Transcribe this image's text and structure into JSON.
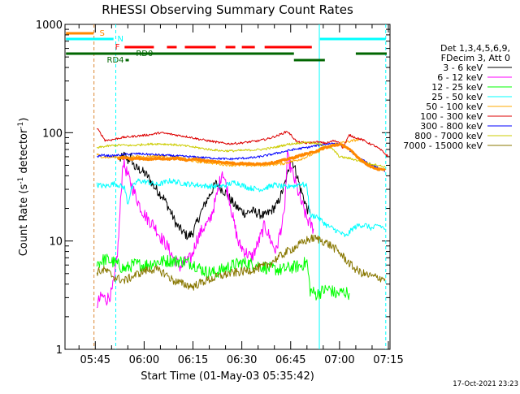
{
  "chart_data": {
    "type": "line",
    "title": "RHESSI Observing Summary Count Rates",
    "xlabel": "Start Time (01-May-03 05:35:42)",
    "ylabel": "Count Rate (s⁻¹ detector⁻¹)",
    "ylabel_parts": [
      "Count Rate (s",
      "-1",
      " detector",
      "-1",
      ")"
    ],
    "y_scale": "log",
    "ylim": [
      1,
      1000
    ],
    "xlim_minutes": [
      35.7,
      135.5
    ],
    "x_ticks": [
      {
        "label": "05:45",
        "min": 45
      },
      {
        "label": "06:00",
        "min": 60
      },
      {
        "label": "06:15",
        "min": 75
      },
      {
        "label": "06:30",
        "min": 90
      },
      {
        "label": "06:45",
        "min": 105
      },
      {
        "label": "07:00",
        "min": 120
      },
      {
        "label": "07:15",
        "min": 135
      }
    ],
    "y_ticks": [
      {
        "label": "1",
        "value": 1
      },
      {
        "label": "10",
        "value": 10
      },
      {
        "label": "100",
        "value": 100
      },
      {
        "label": "1000",
        "value": 1000
      }
    ],
    "legend_header": [
      "Det 1,3,4,5,6,9,",
      "FDecim 3, Att 0"
    ],
    "legend_position": "right",
    "series": [
      {
        "name": "3 - 6 keV",
        "color": "#000000",
        "x": [
          52.5,
          54,
          55,
          56,
          57,
          59,
          61,
          63,
          66,
          68,
          70,
          72,
          73.5,
          75,
          77,
          79,
          82,
          85,
          88,
          91,
          93,
          95,
          97,
          99,
          101,
          103,
          104,
          105,
          106,
          107,
          108,
          109,
          110,
          111
        ],
        "y": [
          56,
          62,
          55,
          60,
          48,
          45,
          40,
          32,
          25,
          19,
          14,
          12,
          11,
          12,
          17,
          23,
          34,
          28,
          21,
          18,
          19,
          18,
          17,
          19,
          22,
          32,
          40,
          58,
          50,
          40,
          30,
          25,
          20,
          18
        ]
      },
      {
        "name": "6 - 12 keV",
        "color": "#ff00ff",
        "x": [
          45.5,
          47,
          48.5,
          50,
          51,
          52,
          53.5,
          55,
          57,
          59,
          61,
          63,
          65,
          67,
          69,
          71,
          73,
          74.5,
          76,
          78,
          80,
          82,
          84,
          86,
          87.5,
          89,
          91,
          93,
          95,
          97,
          99,
          100.5,
          102,
          103,
          104,
          106,
          108,
          110,
          112
        ],
        "y": [
          2.6,
          3.1,
          2.9,
          3.3,
          4.6,
          9,
          55,
          40,
          28,
          20,
          16,
          14,
          11,
          9,
          7,
          5.8,
          6.5,
          7,
          10,
          13,
          15,
          24,
          45,
          26,
          15,
          9.5,
          8,
          7,
          9.5,
          14,
          10,
          8,
          13,
          17,
          60,
          38,
          24,
          16,
          13
        ]
      },
      {
        "name": "12 - 25 keV",
        "color": "#00ff00",
        "x": [
          45.5,
          48,
          51,
          54,
          57,
          60,
          64,
          68,
          72,
          75,
          77,
          79,
          82,
          86,
          90,
          94,
          98,
          102,
          105,
          108,
          110,
          111,
          113,
          115,
          117,
          119,
          121,
          123
        ],
        "y": [
          6.2,
          6.8,
          6.3,
          5.5,
          6.1,
          6,
          6.4,
          6.6,
          6.5,
          6.2,
          5.6,
          5.2,
          5.1,
          5.8,
          6.3,
          6.1,
          5.6,
          5.4,
          5.7,
          5.9,
          6.4,
          3.5,
          3.2,
          3.5,
          3.6,
          3.2,
          3.4,
          3.3
        ]
      },
      {
        "name": "25 - 50 keV",
        "color": "#00ffff",
        "x": [
          45.5,
          48,
          51,
          54,
          55,
          56,
          58,
          61,
          64,
          68,
          72,
          76,
          80,
          84,
          88,
          92,
          96,
          100,
          102,
          104,
          105,
          106,
          108,
          110,
          111,
          113,
          116,
          118,
          120,
          122,
          124,
          126,
          128,
          130,
          132,
          134
        ],
        "y": [
          33,
          32,
          34,
          31,
          22,
          30,
          36,
          35,
          33,
          36,
          34,
          33,
          32,
          32,
          35,
          31,
          30,
          33,
          32,
          31,
          33,
          32,
          34,
          32,
          17,
          17,
          14,
          13,
          12,
          11,
          13,
          14,
          14,
          13,
          14,
          13
        ]
      },
      {
        "name": "50 - 100 keV",
        "color": "#ffaa00",
        "x": [
          45.5,
          47,
          49,
          51,
          54,
          57,
          60,
          64,
          68,
          72,
          76,
          80,
          84,
          88,
          92,
          96,
          100,
          103,
          106,
          108,
          110,
          112,
          114,
          116,
          118,
          120,
          122,
          124,
          126
        ],
        "y": [
          63,
          60,
          59,
          60,
          58,
          60,
          60,
          61,
          60,
          58,
          54,
          53,
          51,
          50,
          50,
          50,
          51,
          52,
          55,
          57,
          60,
          64,
          68,
          72,
          78,
          80,
          82,
          84,
          87
        ]
      },
      {
        "name": "100 - 300 keV",
        "color": "#dd0000",
        "x": [
          45.5,
          47,
          48,
          50,
          53,
          56,
          59,
          62,
          65,
          68,
          71,
          74,
          77,
          80,
          83,
          86,
          89,
          92,
          95,
          98,
          101,
          104,
          107,
          110,
          113,
          116,
          118,
          120,
          121,
          123,
          125,
          127,
          129,
          131,
          133,
          135
        ],
        "y": [
          110,
          95,
          85,
          86,
          90,
          92,
          94,
          96,
          100,
          97,
          94,
          91,
          87,
          84,
          81,
          79,
          80,
          82,
          84,
          88,
          94,
          103,
          82,
          80,
          82,
          80,
          84,
          82,
          72,
          95,
          90,
          86,
          80,
          75,
          68,
          60
        ]
      },
      {
        "name": "300 - 800 keV",
        "color": "#0000ff",
        "x": [
          45.5,
          47,
          50,
          54,
          58,
          62,
          66,
          70,
          74,
          78,
          82,
          86,
          90,
          94,
          98,
          102,
          106,
          110,
          114,
          118,
          120,
          122,
          124,
          126,
          128,
          130,
          132,
          134
        ],
        "y": [
          60,
          62,
          61,
          63,
          64,
          63,
          62,
          61,
          60,
          59,
          58,
          57,
          58,
          59,
          62,
          66,
          70,
          73,
          77,
          80,
          78,
          74,
          65,
          58,
          54,
          50,
          47,
          44
        ]
      },
      {
        "name": "800 - 7000 keV",
        "color": "#cccc00",
        "x": [
          45.5,
          47,
          50,
          53,
          56,
          60,
          64,
          68,
          72,
          76,
          80,
          84,
          88,
          92,
          96,
          100,
          104,
          107,
          110,
          113,
          116,
          118,
          120,
          123,
          126,
          129,
          132,
          134
        ],
        "y": [
          72,
          74,
          76,
          77,
          76,
          78,
          79,
          78,
          76,
          73,
          70,
          68,
          68,
          69,
          70,
          73,
          78,
          80,
          82,
          79,
          75,
          70,
          60,
          58,
          55,
          52,
          50,
          48
        ]
      },
      {
        "name": "7000 - 15000 keV",
        "color": "#887700",
        "x": [
          45.5,
          48,
          51,
          54,
          57,
          60,
          63,
          66,
          69,
          72,
          75,
          78,
          82,
          86,
          90,
          94,
          98,
          101,
          104,
          107,
          110,
          112,
          114,
          116,
          118,
          120,
          122,
          124,
          126,
          128,
          130,
          132,
          134
        ],
        "y": [
          5.2,
          5.4,
          4.6,
          4.3,
          4.8,
          5.3,
          5.5,
          5.1,
          4.3,
          4,
          3.8,
          4.2,
          4.6,
          5,
          5.2,
          5.5,
          6,
          7,
          8,
          9,
          10.2,
          10.6,
          10.3,
          9.6,
          8.8,
          7.8,
          6.7,
          5.8,
          5.2,
          4.9,
          4.7,
          4.6,
          4.5
        ]
      }
    ],
    "extra_lines": [
      {
        "name": "thick-orange",
        "color": "#ff8800",
        "x": [
          52,
          54,
          56,
          58,
          61,
          64,
          67,
          70,
          73,
          76,
          79,
          82,
          85,
          88,
          91,
          94,
          97,
          100,
          103,
          106,
          109,
          112,
          115,
          118,
          120,
          122,
          124,
          126,
          128,
          130,
          132,
          134
        ],
        "y": [
          58,
          59,
          57,
          58,
          57,
          58,
          57,
          58,
          56,
          57,
          55,
          54,
          53,
          52,
          52,
          51,
          52,
          53,
          56,
          59,
          63,
          66,
          72,
          76,
          78,
          74,
          66,
          58,
          52,
          48,
          46,
          45
        ]
      }
    ],
    "vlines": [
      {
        "label": "saa-start",
        "min": 44.6,
        "color": "#dd8833",
        "style": "dashed"
      },
      {
        "label": "night-end",
        "min": 51.3,
        "color": "#00ffff",
        "style": "dashed"
      },
      {
        "label": "saa-end",
        "min": 113.8,
        "color": "#00ffff",
        "style": "solid"
      },
      {
        "label": "night-start",
        "min": 134.2,
        "color": "#00ffff",
        "style": "dashed"
      }
    ],
    "flag_bars": [
      {
        "label": "S",
        "color": "#ff8800",
        "segments": [
          [
            36,
            44.5
          ]
        ]
      },
      {
        "label": "N",
        "color": "#00ffff",
        "segments": [
          [
            36,
            50.6
          ],
          [
            114,
            134.2
          ]
        ]
      },
      {
        "label": "F",
        "color": "#ff0000",
        "segments": [
          [
            54,
            63
          ],
          [
            67,
            70
          ],
          [
            72.5,
            82
          ],
          [
            85,
            88
          ],
          [
            90,
            94
          ],
          [
            97,
            111.5
          ]
        ]
      },
      {
        "label": "RD0",
        "color": "#006600",
        "segments": [
          [
            36,
            106
          ],
          [
            125,
            134.5
          ]
        ]
      },
      {
        "label": "RD4",
        "color": "#006600",
        "segments": [
          [
            106,
            115.5
          ]
        ]
      }
    ],
    "flag_marker": {
      "label": "RD4 marker",
      "min": 54.8
    }
  },
  "footer": {
    "timestamp": "17-Oct-2021 23:23"
  }
}
